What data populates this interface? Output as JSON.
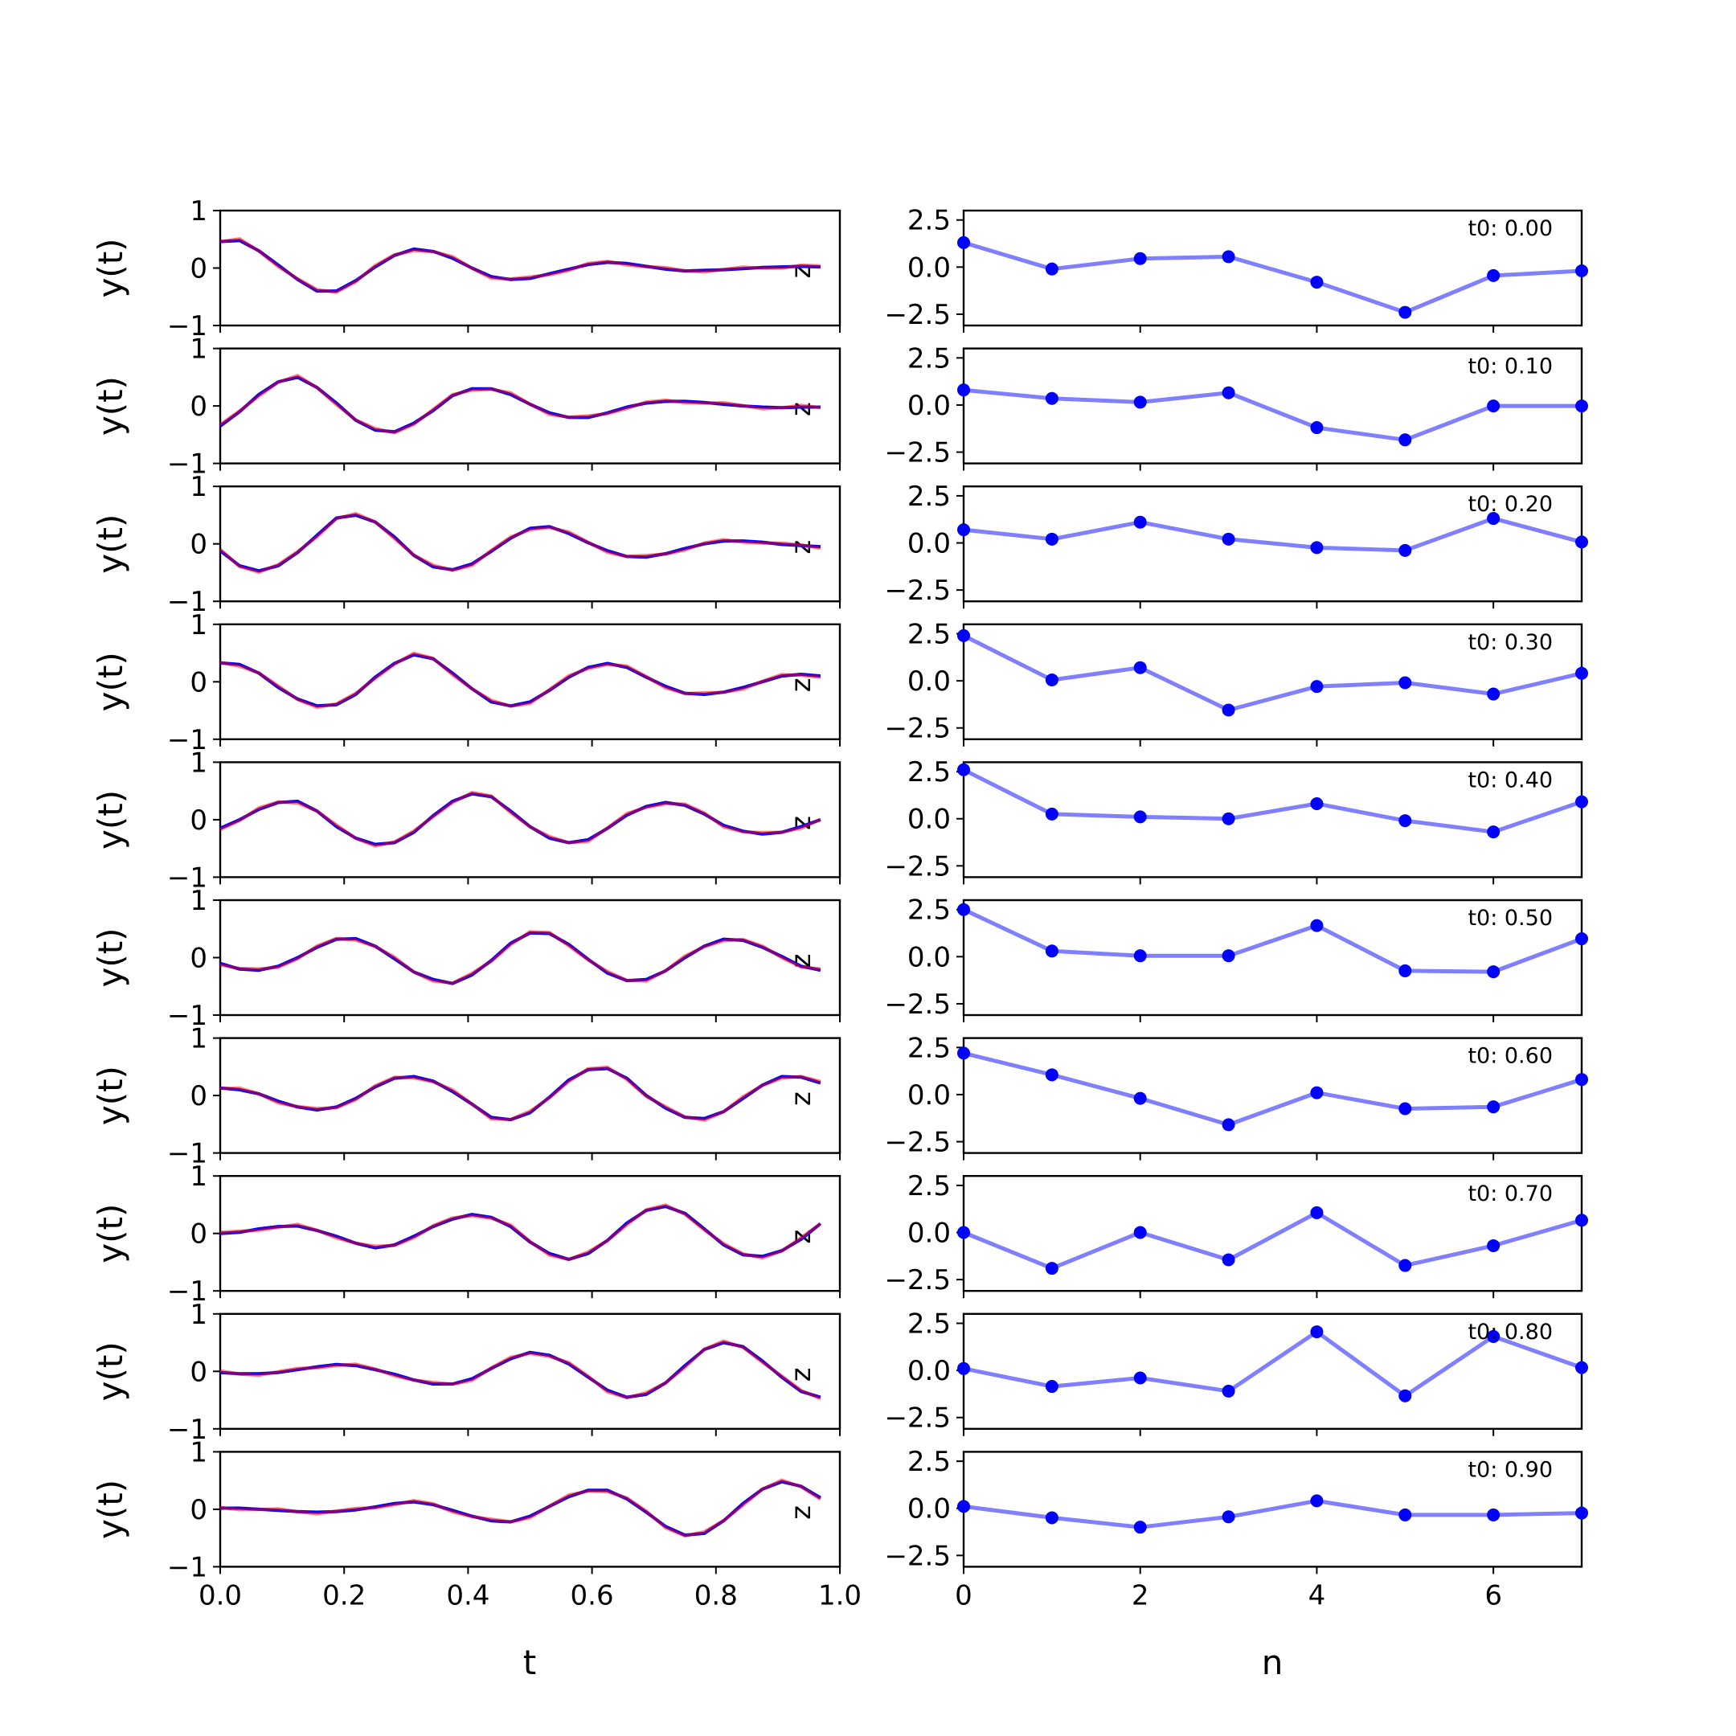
{
  "chart_data": {
    "type": "line",
    "left": {
      "xlabel": "t",
      "ylabel": "y(t)",
      "xlim": [
        0,
        1
      ],
      "ylim": [
        -1,
        1
      ],
      "xticks": [
        "0.0",
        "0.2",
        "0.4",
        "0.6",
        "0.8",
        "1.0"
      ],
      "yticks": [
        "−1",
        "0",
        "1"
      ],
      "edge_label": "z",
      "colors": {
        "truth": "#0000ff",
        "pred": "#ff0000"
      },
      "t": [
        0,
        0.03125,
        0.0625,
        0.09375,
        0.125,
        0.15625,
        0.1875,
        0.21875,
        0.25,
        0.28125,
        0.3125,
        0.34375,
        0.375,
        0.40625,
        0.4375,
        0.46875,
        0.5,
        0.53125,
        0.5625,
        0.59375,
        0.625,
        0.65625,
        0.6875,
        0.71875,
        0.75,
        0.78125,
        0.8125,
        0.84375,
        0.875,
        0.90625,
        0.9375,
        0.96875
      ],
      "panels": [
        {
          "y": [
            0.46,
            0.48,
            0.3,
            0.05,
            -0.2,
            -0.4,
            -0.4,
            -0.22,
            0.02,
            0.22,
            0.33,
            0.29,
            0.17,
            0.0,
            -0.15,
            -0.2,
            -0.18,
            -0.1,
            -0.02,
            0.06,
            0.1,
            0.08,
            0.03,
            -0.02,
            -0.05,
            -0.04,
            -0.03,
            -0.01,
            0.01,
            0.02,
            0.03,
            0.02
          ]
        },
        {
          "y": [
            -0.35,
            -0.1,
            0.2,
            0.42,
            0.5,
            0.32,
            0.05,
            -0.25,
            -0.42,
            -0.45,
            -0.3,
            -0.08,
            0.18,
            0.3,
            0.3,
            0.2,
            0.03,
            -0.12,
            -0.2,
            -0.2,
            -0.12,
            -0.02,
            0.05,
            0.08,
            0.08,
            0.06,
            0.03,
            0.0,
            -0.02,
            -0.03,
            -0.02,
            -0.02
          ]
        },
        {
          "y": [
            -0.12,
            -0.38,
            -0.47,
            -0.38,
            -0.15,
            0.15,
            0.45,
            0.5,
            0.38,
            0.12,
            -0.2,
            -0.4,
            -0.45,
            -0.35,
            -0.13,
            0.1,
            0.27,
            0.3,
            0.18,
            0.02,
            -0.12,
            -0.22,
            -0.23,
            -0.17,
            -0.08,
            0.0,
            0.05,
            0.05,
            0.03,
            -0.01,
            -0.03,
            -0.05
          ]
        },
        {
          "y": [
            0.33,
            0.3,
            0.15,
            -0.1,
            -0.3,
            -0.42,
            -0.4,
            -0.22,
            0.08,
            0.32,
            0.47,
            0.4,
            0.15,
            -0.12,
            -0.35,
            -0.42,
            -0.35,
            -0.15,
            0.08,
            0.25,
            0.32,
            0.25,
            0.08,
            -0.08,
            -0.2,
            -0.22,
            -0.18,
            -0.1,
            0.0,
            0.1,
            0.13,
            0.1
          ]
        },
        {
          "y": [
            -0.15,
            0.0,
            0.18,
            0.3,
            0.32,
            0.15,
            -0.12,
            -0.32,
            -0.43,
            -0.4,
            -0.22,
            0.07,
            0.32,
            0.45,
            0.4,
            0.15,
            -0.12,
            -0.32,
            -0.4,
            -0.35,
            -0.15,
            0.08,
            0.23,
            0.3,
            0.25,
            0.1,
            -0.1,
            -0.2,
            -0.25,
            -0.22,
            -0.12,
            0.0
          ]
        },
        {
          "y": [
            -0.1,
            -0.2,
            -0.22,
            -0.15,
            0.0,
            0.18,
            0.32,
            0.33,
            0.2,
            -0.02,
            -0.25,
            -0.38,
            -0.45,
            -0.3,
            -0.05,
            0.25,
            0.43,
            0.42,
            0.23,
            -0.03,
            -0.27,
            -0.4,
            -0.38,
            -0.23,
            0.0,
            0.2,
            0.32,
            0.3,
            0.18,
            0.02,
            -0.15,
            -0.22
          ]
        },
        {
          "y": [
            0.13,
            0.1,
            0.03,
            -0.1,
            -0.2,
            -0.25,
            -0.2,
            -0.05,
            0.15,
            0.3,
            0.33,
            0.25,
            0.07,
            -0.15,
            -0.38,
            -0.42,
            -0.3,
            -0.03,
            0.27,
            0.45,
            0.47,
            0.3,
            0.0,
            -0.22,
            -0.38,
            -0.4,
            -0.28,
            -0.05,
            0.18,
            0.33,
            0.32,
            0.22
          ]
        },
        {
          "y": [
            0.0,
            0.02,
            0.08,
            0.12,
            0.13,
            0.05,
            -0.05,
            -0.17,
            -0.25,
            -0.2,
            -0.05,
            0.12,
            0.25,
            0.33,
            0.28,
            0.12,
            -0.15,
            -0.35,
            -0.45,
            -0.35,
            -0.12,
            0.18,
            0.4,
            0.47,
            0.35,
            0.08,
            -0.2,
            -0.37,
            -0.4,
            -0.3,
            -0.1,
            0.17
          ]
        },
        {
          "y": [
            -0.02,
            -0.04,
            -0.04,
            -0.02,
            0.03,
            0.08,
            0.12,
            0.1,
            0.03,
            -0.05,
            -0.15,
            -0.22,
            -0.22,
            -0.13,
            0.05,
            0.22,
            0.33,
            0.28,
            0.13,
            -0.1,
            -0.33,
            -0.45,
            -0.4,
            -0.2,
            0.1,
            0.38,
            0.5,
            0.43,
            0.18,
            -0.1,
            -0.35,
            -0.45
          ]
        },
        {
          "y": [
            0.02,
            0.02,
            0.0,
            -0.02,
            -0.04,
            -0.05,
            -0.04,
            -0.01,
            0.04,
            0.1,
            0.13,
            0.08,
            -0.02,
            -0.12,
            -0.2,
            -0.22,
            -0.12,
            0.05,
            0.22,
            0.33,
            0.33,
            0.18,
            -0.05,
            -0.3,
            -0.45,
            -0.42,
            -0.2,
            0.1,
            0.35,
            0.48,
            0.4,
            0.2
          ]
        }
      ]
    },
    "right": {
      "xlabel": "n",
      "xlim": [
        0,
        7
      ],
      "ylim": [
        -3.1,
        3.0
      ],
      "xticks": [
        0,
        2,
        4,
        6
      ],
      "yticks": [
        2.5,
        0.0,
        -2.5
      ],
      "ytick_labels": [
        "2.5",
        "0.0",
        "−2.5"
      ],
      "color": "#0000ff",
      "n": [
        0,
        1,
        2,
        3,
        4,
        5,
        6,
        7
      ],
      "panels": [
        {
          "label": "t0: 0.00",
          "values": [
            1.3,
            -0.1,
            0.45,
            0.55,
            -0.8,
            -2.4,
            -0.45,
            -0.2
          ]
        },
        {
          "label": "t0: 0.10",
          "values": [
            0.8,
            0.35,
            0.15,
            0.65,
            -1.2,
            -1.85,
            -0.05,
            -0.05
          ]
        },
        {
          "label": "t0: 0.20",
          "values": [
            0.7,
            0.2,
            1.1,
            0.2,
            -0.25,
            -0.4,
            1.3,
            0.05
          ]
        },
        {
          "label": "t0: 0.30",
          "values": [
            2.4,
            0.05,
            0.7,
            -1.55,
            -0.3,
            -0.1,
            -0.7,
            0.4
          ]
        },
        {
          "label": "t0: 0.40",
          "values": [
            2.6,
            0.25,
            0.1,
            0.0,
            0.8,
            -0.1,
            -0.7,
            0.9
          ]
        },
        {
          "label": "t0: 0.50",
          "values": [
            2.5,
            0.3,
            0.05,
            0.05,
            1.65,
            -0.75,
            -0.8,
            0.95
          ]
        },
        {
          "label": "t0: 0.60",
          "values": [
            2.2,
            1.05,
            -0.2,
            -1.6,
            0.1,
            -0.75,
            -0.65,
            0.8
          ]
        },
        {
          "label": "t0: 0.70",
          "values": [
            0.0,
            -1.9,
            0.0,
            -1.45,
            1.05,
            -1.75,
            -0.7,
            0.65
          ]
        },
        {
          "label": "t0: 0.80",
          "values": [
            0.1,
            -0.85,
            -0.4,
            -1.1,
            2.05,
            -1.35,
            1.8,
            0.15
          ]
        },
        {
          "label": "t0: 0.90",
          "values": [
            0.1,
            -0.5,
            -1.0,
            -0.45,
            0.4,
            -0.35,
            -0.35,
            -0.25
          ]
        }
      ]
    }
  }
}
